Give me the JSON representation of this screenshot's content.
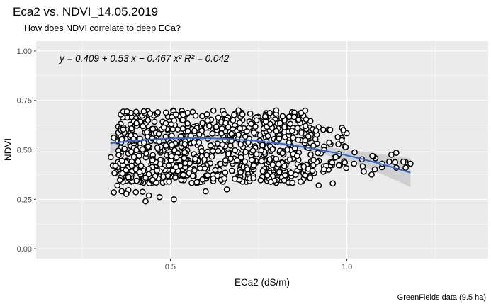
{
  "chart_data": {
    "type": "scatter",
    "title": "Eca2 vs. NDVI_14.05.2019",
    "subtitle": "How does NDVI correlate to deep ECa?",
    "xlabel": "ECa2 (dS/m)",
    "ylabel": "NDVI",
    "caption": "GreenFields data (9.5 ha)",
    "annotation": "y = 0.409 + 0.53 x − 0.467 x²   R² = 0.042",
    "xlim": [
      0.12,
      1.4
    ],
    "ylim": [
      -0.05,
      1.05
    ],
    "x_ticks": [
      0.5,
      1.0
    ],
    "x_tick_labels": [
      "0.5",
      "1.0"
    ],
    "y_ticks": [
      0.0,
      0.25,
      0.5,
      0.75,
      1.0
    ],
    "y_tick_labels": [
      "0.00",
      "0.25",
      "0.50",
      "0.75",
      "1.00"
    ],
    "grid": true,
    "panel_color": "#ebebeb",
    "point_color": "#000000",
    "fit": {
      "model": "quadratic",
      "coefficients": [
        0.409,
        0.53,
        -0.467
      ],
      "r_squared": 0.042,
      "x_range": [
        0.33,
        1.18
      ],
      "color": "#3366cc",
      "band_color": "#bdbdbd"
    },
    "scatter_regions": [
      {
        "x": [
          0.35,
          0.9
        ],
        "y": [
          0.33,
          0.7
        ],
        "n": 780
      },
      {
        "x": [
          0.33,
          0.52
        ],
        "y": [
          0.26,
          0.62
        ],
        "n": 60
      },
      {
        "x": [
          0.9,
          1.0
        ],
        "y": [
          0.38,
          0.62
        ],
        "n": 50
      },
      {
        "x": [
          1.0,
          1.18
        ],
        "y": [
          0.38,
          0.5
        ],
        "n": 14
      }
    ],
    "points": [
      {
        "x": 0.34,
        "y": 0.285
      },
      {
        "x": 0.43,
        "y": 0.24
      },
      {
        "x": 0.51,
        "y": 0.25
      },
      {
        "x": 0.6,
        "y": 0.29
      },
      {
        "x": 0.66,
        "y": 0.3
      },
      {
        "x": 0.92,
        "y": 0.32
      },
      {
        "x": 0.96,
        "y": 0.33
      },
      {
        "x": 0.99,
        "y": 0.6
      },
      {
        "x": 1.02,
        "y": 0.43
      },
      {
        "x": 1.07,
        "y": 0.375
      },
      {
        "x": 1.1,
        "y": 0.43
      },
      {
        "x": 1.14,
        "y": 0.41
      },
      {
        "x": 1.12,
        "y": 0.44
      },
      {
        "x": 1.16,
        "y": 0.44
      },
      {
        "x": 1.18,
        "y": 0.43
      }
    ]
  }
}
